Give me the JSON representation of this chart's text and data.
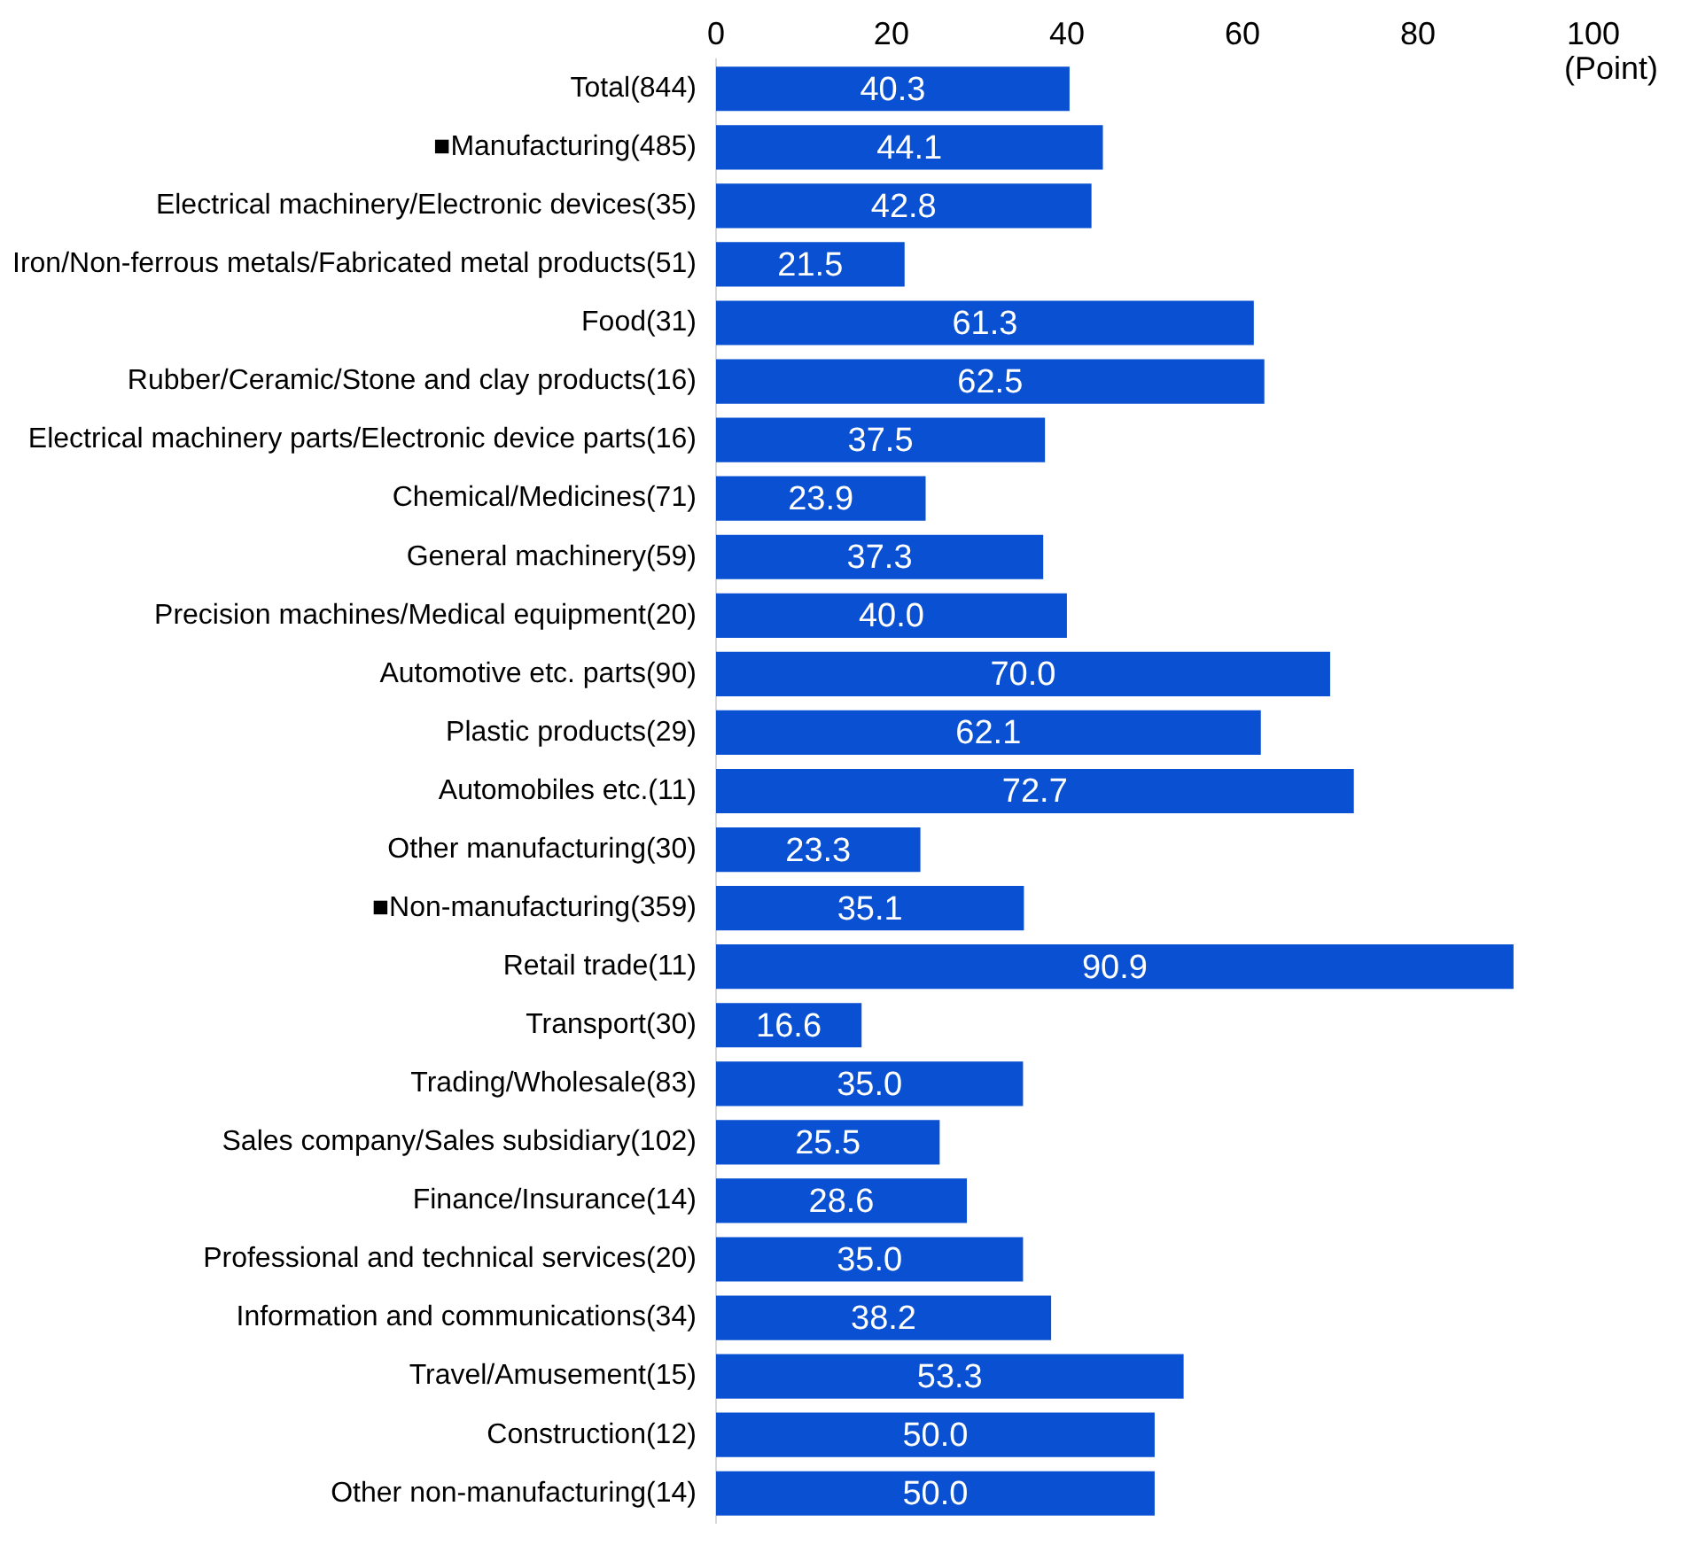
{
  "chart_data": {
    "type": "bar",
    "orientation": "horizontal",
    "xlabel": "(Point)",
    "categories": [
      "Total(844)",
      "■Manufacturing(485)",
      "Electrical machinery/Electronic devices(35)",
      "Iron/Non-ferrous metals/Fabricated metal products(51)",
      "Food(31)",
      "Rubber/Ceramic/Stone and clay products(16)",
      "Electrical machinery parts/Electronic device parts(16)",
      "Chemical/Medicines(71)",
      "General machinery(59)",
      "Precision machines/Medical equipment(20)",
      "Automotive etc. parts(90)",
      "Plastic products(29)",
      "Automobiles etc.(11)",
      "Other manufacturing(30)",
      "■Non-manufacturing(359)",
      "Retail trade(11)",
      "Transport(30)",
      "Trading/Wholesale(83)",
      "Sales company/Sales subsidiary(102)",
      "Finance/Insurance(14)",
      "Professional and technical services(20)",
      "Information and communications(34)",
      "Travel/Amusement(15)",
      "Construction(12)",
      "Other non-manufacturing(14)"
    ],
    "values": [
      40.3,
      44.1,
      42.8,
      21.5,
      61.3,
      62.5,
      37.5,
      23.9,
      37.3,
      40.0,
      70.0,
      62.1,
      72.7,
      23.3,
      35.1,
      90.9,
      16.6,
      35.0,
      25.5,
      28.6,
      35.0,
      38.2,
      53.3,
      50.0,
      50.0
    ],
    "value_labels": [
      "40.3",
      "44.1",
      "42.8",
      "21.5",
      "61.3",
      "62.5",
      "37.5",
      "23.9",
      "37.3",
      "40.0",
      "70.0",
      "62.1",
      "72.7",
      "23.3",
      "35.1",
      "90.9",
      "16.6",
      "35.0",
      "25.5",
      "28.6",
      "35.0",
      "38.2",
      "53.3",
      "50.0",
      "50.0"
    ],
    "color": "#0a50d2",
    "xlim": [
      0,
      100
    ],
    "xticks": [
      0,
      20,
      40,
      60,
      80,
      100
    ],
    "grid": false,
    "legend": false
  }
}
